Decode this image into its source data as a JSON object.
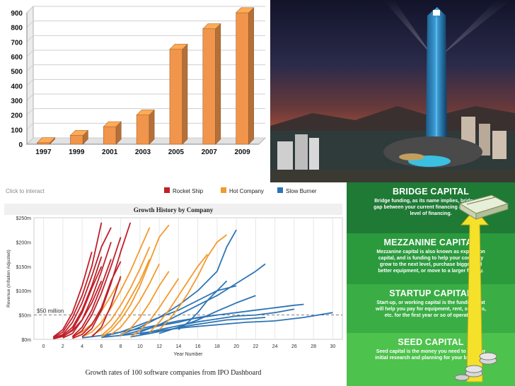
{
  "chart_data": [
    {
      "type": "bar",
      "title": "",
      "categories": [
        "1997",
        "1999",
        "2001",
        "2003",
        "2005",
        "2007",
        "2009"
      ],
      "values": [
        10,
        60,
        120,
        200,
        650,
        790,
        900
      ],
      "ylim": [
        0,
        900
      ],
      "yticks": [
        "0",
        "100",
        "200",
        "300",
        "400",
        "500",
        "600",
        "700",
        "800",
        "900"
      ],
      "grid": true,
      "legend": "none",
      "bar_color": "#f0954b"
    },
    {
      "type": "line",
      "title": "Growth History by Company",
      "xlabel": "Year Number",
      "ylabel": "Revenue (Inflation Adjusted)",
      "xlim": [
        -1,
        31
      ],
      "ylim": [
        0,
        250
      ],
      "xticks": [
        "0",
        "2",
        "4",
        "6",
        "8",
        "10",
        "12",
        "14",
        "16",
        "18",
        "20",
        "22",
        "24",
        "26",
        "28",
        "30"
      ],
      "yticks": [
        "$0m",
        "$50m",
        "$100m",
        "$150m",
        "$200m",
        "$250m"
      ],
      "reference_line": {
        "y": 50,
        "label": "$50 million"
      },
      "legend_position": "top",
      "caption": "Growth rates of 100 software companies from IPO Dashboard",
      "hint": "Click to interact",
      "series": [
        {
          "name": "Rocket Ship",
          "color": "#c0202a",
          "lines": [
            [
              [
                1,
                3
              ],
              [
                2,
                15
              ],
              [
                3,
                45
              ],
              [
                4,
                90
              ],
              [
                5,
                150
              ],
              [
                6,
                240
              ]
            ],
            [
              [
                1,
                2
              ],
              [
                2,
                10
              ],
              [
                3,
                35
              ],
              [
                4,
                75
              ],
              [
                5,
                130
              ],
              [
                6,
                190
              ],
              [
                7,
                230
              ]
            ],
            [
              [
                1,
                5
              ],
              [
                2,
                20
              ],
              [
                3,
                55
              ],
              [
                4,
                110
              ],
              [
                5,
                180
              ]
            ],
            [
              [
                1,
                2
              ],
              [
                2,
                8
              ],
              [
                3,
                25
              ],
              [
                4,
                60
              ],
              [
                5,
                110
              ],
              [
                6,
                170
              ]
            ],
            [
              [
                2,
                3
              ],
              [
                3,
                12
              ],
              [
                4,
                40
              ],
              [
                5,
                85
              ],
              [
                6,
                140
              ],
              [
                7,
                200
              ]
            ],
            [
              [
                2,
                5
              ],
              [
                3,
                20
              ],
              [
                4,
                55
              ],
              [
                5,
                105
              ],
              [
                6,
                150
              ]
            ],
            [
              [
                3,
                4
              ],
              [
                4,
                18
              ],
              [
                5,
                50
              ],
              [
                6,
                95
              ],
              [
                7,
                150
              ],
              [
                8,
                210
              ]
            ],
            [
              [
                3,
                6
              ],
              [
                4,
                25
              ],
              [
                5,
                60
              ],
              [
                6,
                110
              ],
              [
                7,
                165
              ]
            ],
            [
              [
                4,
                5
              ],
              [
                5,
                22
              ],
              [
                6,
                60
              ],
              [
                7,
                115
              ],
              [
                8,
                180
              ],
              [
                9,
                240
              ]
            ],
            [
              [
                1,
                1
              ],
              [
                2,
                6
              ],
              [
                3,
                18
              ],
              [
                4,
                40
              ],
              [
                5,
                75
              ],
              [
                6,
                120
              ]
            ],
            [
              [
                3,
                2
              ],
              [
                4,
                10
              ],
              [
                5,
                30
              ],
              [
                6,
                65
              ],
              [
                7,
                120
              ],
              [
                8,
                160
              ]
            ],
            [
              [
                5,
                5
              ],
              [
                6,
                25
              ],
              [
                7,
                70
              ],
              [
                8,
                130
              ]
            ]
          ]
        },
        {
          "name": "Hot Company",
          "color": "#f39a2d",
          "lines": [
            [
              [
                4,
                5
              ],
              [
                5,
                15
              ],
              [
                6,
                35
              ],
              [
                7,
                65
              ],
              [
                8,
                100
              ],
              [
                9,
                140
              ],
              [
                10,
                185
              ],
              [
                11,
                230
              ]
            ],
            [
              [
                5,
                8
              ],
              [
                6,
                20
              ],
              [
                7,
                40
              ],
              [
                8,
                70
              ],
              [
                9,
                105
              ],
              [
                10,
                145
              ],
              [
                11,
                190
              ]
            ],
            [
              [
                6,
                5
              ],
              [
                7,
                18
              ],
              [
                8,
                40
              ],
              [
                9,
                70
              ],
              [
                10,
                110
              ],
              [
                11,
                160
              ],
              [
                12,
                210
              ],
              [
                13,
                235
              ]
            ],
            [
              [
                7,
                10
              ],
              [
                8,
                25
              ],
              [
                9,
                50
              ],
              [
                10,
                80
              ],
              [
                11,
                115
              ],
              [
                12,
                155
              ]
            ],
            [
              [
                8,
                8
              ],
              [
                9,
                22
              ],
              [
                10,
                45
              ],
              [
                11,
                75
              ],
              [
                12,
                110
              ],
              [
                13,
                140
              ]
            ],
            [
              [
                9,
                5
              ],
              [
                10,
                18
              ],
              [
                11,
                38
              ],
              [
                12,
                65
              ],
              [
                13,
                95
              ],
              [
                14,
                125
              ]
            ],
            [
              [
                12,
                20
              ],
              [
                13,
                40
              ],
              [
                14,
                65
              ],
              [
                15,
                95
              ],
              [
                16,
                130
              ],
              [
                17,
                170
              ],
              [
                18,
                200
              ],
              [
                19,
                215
              ]
            ],
            [
              [
                11,
                15
              ],
              [
                12,
                35
              ],
              [
                13,
                60
              ],
              [
                14,
                90
              ],
              [
                15,
                120
              ],
              [
                16,
                150
              ],
              [
                17,
                175
              ]
            ],
            [
              [
                3,
                5
              ],
              [
                4,
                15
              ],
              [
                5,
                32
              ],
              [
                6,
                58
              ],
              [
                7,
                90
              ],
              [
                8,
                125
              ]
            ],
            [
              [
                6,
                8
              ],
              [
                7,
                25
              ],
              [
                8,
                50
              ],
              [
                9,
                85
              ],
              [
                10,
                120
              ],
              [
                11,
                165
              ]
            ]
          ]
        },
        {
          "name": "Slow Burner",
          "color": "#2e74b5",
          "lines": [
            [
              [
                8,
                10
              ],
              [
                10,
                25
              ],
              [
                12,
                45
              ],
              [
                14,
                70
              ],
              [
                16,
                100
              ],
              [
                18,
                140
              ],
              [
                19,
                190
              ],
              [
                20,
                225
              ]
            ],
            [
              [
                10,
                15
              ],
              [
                12,
                30
              ],
              [
                14,
                50
              ],
              [
                16,
                70
              ],
              [
                18,
                90
              ],
              [
                20,
                115
              ],
              [
                22,
                140
              ],
              [
                23,
                155
              ]
            ],
            [
              [
                6,
                5
              ],
              [
                8,
                15
              ],
              [
                10,
                30
              ],
              [
                12,
                45
              ],
              [
                14,
                60
              ],
              [
                16,
                80
              ],
              [
                18,
                100
              ],
              [
                20,
                110
              ]
            ],
            [
              [
                8,
                8
              ],
              [
                10,
                18
              ],
              [
                12,
                28
              ],
              [
                14,
                35
              ],
              [
                16,
                45
              ],
              [
                18,
                50
              ],
              [
                20,
                55
              ],
              [
                22,
                60
              ],
              [
                24,
                65
              ],
              [
                26,
                70
              ],
              [
                27,
                72
              ]
            ],
            [
              [
                6,
                4
              ],
              [
                9,
                10
              ],
              [
                12,
                18
              ],
              [
                15,
                25
              ],
              [
                18,
                30
              ],
              [
                21,
                35
              ],
              [
                24,
                38
              ],
              [
                27,
                45
              ],
              [
                30,
                55
              ]
            ],
            [
              [
                10,
                10
              ],
              [
                12,
                20
              ],
              [
                14,
                28
              ],
              [
                16,
                36
              ],
              [
                18,
                42
              ],
              [
                20,
                48
              ],
              [
                22,
                50
              ],
              [
                24,
                55
              ],
              [
                26,
                62
              ]
            ],
            [
              [
                12,
                12
              ],
              [
                14,
                25
              ],
              [
                16,
                40
              ],
              [
                18,
                58
              ],
              [
                20,
                75
              ],
              [
                22,
                90
              ]
            ],
            [
              [
                4,
                3
              ],
              [
                6,
                8
              ],
              [
                8,
                15
              ],
              [
                10,
                22
              ],
              [
                12,
                30
              ],
              [
                14,
                38
              ],
              [
                16,
                44
              ],
              [
                18,
                50
              ]
            ],
            [
              [
                14,
                20
              ],
              [
                15,
                35
              ],
              [
                16,
                55
              ],
              [
                17,
                80
              ],
              [
                18,
                100
              ],
              [
                19,
                120
              ]
            ],
            [
              [
                9,
                5
              ],
              [
                11,
                12
              ],
              [
                13,
                20
              ],
              [
                15,
                28
              ],
              [
                17,
                34
              ],
              [
                19,
                40
              ],
              [
                21,
                42
              ],
              [
                23,
                45
              ]
            ]
          ]
        }
      ]
    }
  ],
  "capital_ladder": {
    "tiers": [
      {
        "title": "BRIDGE CAPITAL",
        "desc": "Bridge funding, as its name implies, bridges the gap between your current financing and the next level of financing.",
        "color": "#1f7a35"
      },
      {
        "title": "MEZZANINE CAPITAL",
        "desc": "Mezzanine capital is also known as expansion capital, and is funding to help your company grow to the next level, purchase bigger and better equipment, or move to a larger facility.",
        "color": "#2b9a3d"
      },
      {
        "title": "STARTUP CAPITAL",
        "desc": "Start-up, or working capital is the funding that will help you pay for equipment, rent, supplies, etc. for the first year or so of operation.",
        "color": "#3aae44"
      },
      {
        "title": "SEED CAPITAL",
        "desc": "Seed capital is the money you need to do your initial research and planning for your business.",
        "color": "#4dc24c"
      }
    ],
    "arrow_color": "#f6e12a",
    "icons": [
      "money-stack-icon",
      "coin-stack-icon"
    ]
  }
}
